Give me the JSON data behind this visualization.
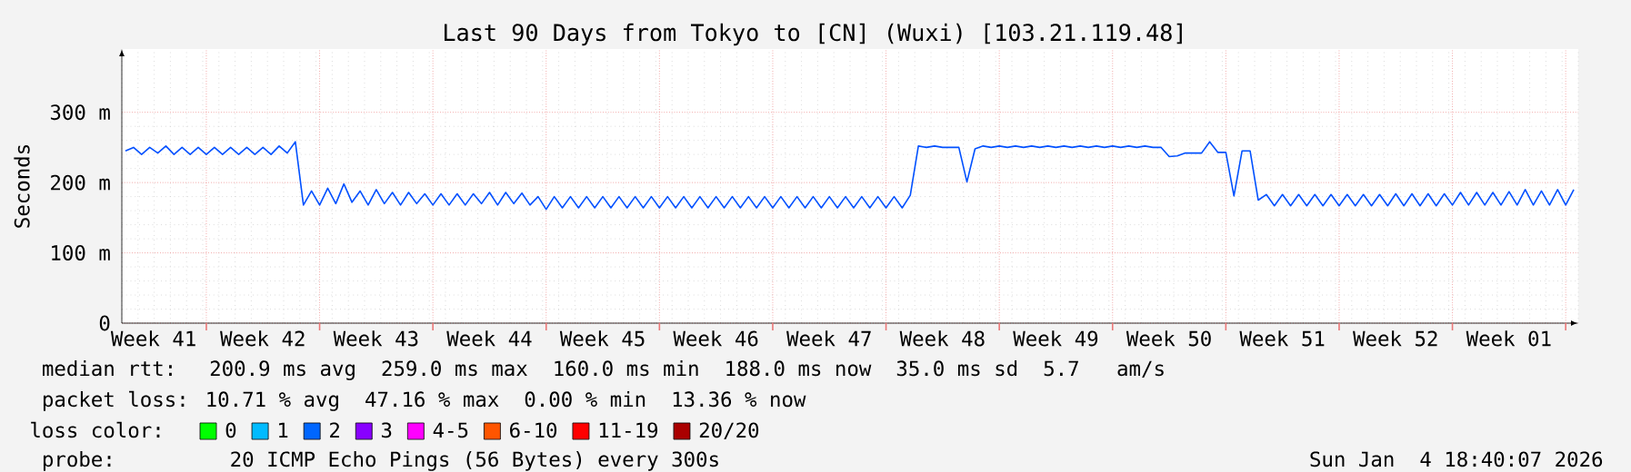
{
  "chart_data": {
    "type": "line",
    "title": "Last 90 Days from Tokyo to [CN] (Wuxi) [103.21.119.48]",
    "ylabel": "Seconds",
    "xlim": [
      "2025-10-06T18:40",
      "2026-01-04T18:40"
    ],
    "ylim": [
      0,
      390
    ],
    "xticks": [
      {
        "value": "2025-10-12T00:00",
        "label": null
      },
      {
        "value": "2025-10-19T00:00",
        "label": null
      },
      {
        "value": "2025-10-26T00:00",
        "label": null
      },
      {
        "value": "2025-11-02T00:00",
        "label": null
      },
      {
        "value": "2025-11-09T00:00",
        "label": null
      },
      {
        "value": "2025-11-16T00:00",
        "label": null
      },
      {
        "value": "2025-11-23T00:00",
        "label": null
      },
      {
        "value": "2025-11-30T00:00",
        "label": null
      },
      {
        "value": "2025-12-07T00:00",
        "label": null
      },
      {
        "value": "2025-12-14T00:00",
        "label": null
      },
      {
        "value": "2025-12-21T00:00",
        "label": null
      },
      {
        "value": "2025-12-28T00:00",
        "label": null
      },
      {
        "value": "2026-01-04T00:00",
        "label": null
      },
      {
        "value": "2025-10-08T18:00",
        "label": "Week 41"
      },
      {
        "value": "2025-10-15T12:00",
        "label": "Week 42"
      },
      {
        "value": "2025-10-22T12:00",
        "label": "Week 43"
      },
      {
        "value": "2025-10-29T12:00",
        "label": "Week 44"
      },
      {
        "value": "2025-11-05T12:00",
        "label": "Week 45"
      },
      {
        "value": "2025-11-12T12:00",
        "label": "Week 46"
      },
      {
        "value": "2025-11-19T12:00",
        "label": "Week 47"
      },
      {
        "value": "2025-11-26T12:00",
        "label": "Week 48"
      },
      {
        "value": "2025-12-03T12:00",
        "label": "Week 49"
      },
      {
        "value": "2025-12-10T12:00",
        "label": "Week 50"
      },
      {
        "value": "2025-12-17T12:00",
        "label": "Week 51"
      },
      {
        "value": "2025-12-24T12:00",
        "label": "Week 52"
      },
      {
        "value": "2025-12-31T12:00",
        "label": "Week 01"
      }
    ],
    "yticks": [
      0,
      {
        "value": 100,
        "label": "100 m"
      },
      {
        "value": 200,
        "label": "200 m"
      },
      {
        "value": 300,
        "label": "300 m"
      }
    ],
    "grid": true,
    "legend": "bottom",
    "legend_title": "loss color:",
    "series": [
      {
        "color": "#0050ff",
        "x": [
          "2025-10-07T00:00",
          "2025-10-07T12:00",
          "2025-10-08T00:00",
          "2025-10-08T12:00",
          "2025-10-09T00:00",
          "2025-10-09T12:00",
          "2025-10-10T00:00",
          "2025-10-10T12:00",
          "2025-10-11T00:00",
          "2025-10-11T12:00",
          "2025-10-12T00:00",
          "2025-10-12T12:00",
          "2025-10-13T00:00",
          "2025-10-13T12:00",
          "2025-10-14T00:00",
          "2025-10-14T12:00",
          "2025-10-15T00:00",
          "2025-10-15T12:00",
          "2025-10-16T00:00",
          "2025-10-16T12:00",
          "2025-10-17T00:00",
          "2025-10-17T12:00",
          "2025-10-18T00:00",
          "2025-10-18T12:00",
          "2025-10-19T00:00",
          "2025-10-19T12:00",
          "2025-10-20T00:00",
          "2025-10-20T12:00",
          "2025-10-21T00:00",
          "2025-10-21T12:00",
          "2025-10-22T00:00",
          "2025-10-22T12:00",
          "2025-10-23T00:00",
          "2025-10-23T12:00",
          "2025-10-24T00:00",
          "2025-10-24T12:00",
          "2025-10-25T00:00",
          "2025-10-25T12:00",
          "2025-10-26T00:00",
          "2025-10-26T12:00",
          "2025-10-27T00:00",
          "2025-10-27T12:00",
          "2025-10-28T00:00",
          "2025-10-28T12:00",
          "2025-10-29T00:00",
          "2025-10-29T12:00",
          "2025-10-30T00:00",
          "2025-10-30T12:00",
          "2025-10-31T00:00",
          "2025-10-31T12:00",
          "2025-11-01T00:00",
          "2025-11-01T12:00",
          "2025-11-02T00:00",
          "2025-11-02T12:00",
          "2025-11-03T00:00",
          "2025-11-03T12:00",
          "2025-11-04T00:00",
          "2025-11-04T12:00",
          "2025-11-05T00:00",
          "2025-11-05T12:00",
          "2025-11-06T00:00",
          "2025-11-06T12:00",
          "2025-11-07T00:00",
          "2025-11-07T12:00",
          "2025-11-08T00:00",
          "2025-11-08T12:00",
          "2025-11-09T00:00",
          "2025-11-09T12:00",
          "2025-11-10T00:00",
          "2025-11-10T12:00",
          "2025-11-11T00:00",
          "2025-11-11T12:00",
          "2025-11-12T00:00",
          "2025-11-12T12:00",
          "2025-11-13T00:00",
          "2025-11-13T12:00",
          "2025-11-14T00:00",
          "2025-11-14T12:00",
          "2025-11-15T00:00",
          "2025-11-15T12:00",
          "2025-11-16T00:00",
          "2025-11-16T12:00",
          "2025-11-17T00:00",
          "2025-11-17T12:00",
          "2025-11-18T00:00",
          "2025-11-18T12:00",
          "2025-11-19T00:00",
          "2025-11-19T12:00",
          "2025-11-20T00:00",
          "2025-11-20T12:00",
          "2025-11-21T00:00",
          "2025-11-21T12:00",
          "2025-11-22T00:00",
          "2025-11-22T12:00",
          "2025-11-23T00:00",
          "2025-11-23T12:00",
          "2025-11-24T00:00",
          "2025-11-24T12:00",
          "2025-11-25T00:00",
          "2025-11-25T12:00",
          "2025-11-26T00:00",
          "2025-11-26T12:00",
          "2025-11-27T00:00",
          "2025-11-27T12:00",
          "2025-11-28T00:00",
          "2025-11-28T12:00",
          "2025-11-29T00:00",
          "2025-11-29T12:00",
          "2025-11-30T00:00",
          "2025-11-30T12:00",
          "2025-12-01T00:00",
          "2025-12-01T12:00",
          "2025-12-02T00:00",
          "2025-12-02T12:00",
          "2025-12-03T00:00",
          "2025-12-03T12:00",
          "2025-12-04T00:00",
          "2025-12-04T12:00",
          "2025-12-05T00:00",
          "2025-12-05T12:00",
          "2025-12-06T00:00",
          "2025-12-06T12:00",
          "2025-12-07T00:00",
          "2025-12-07T12:00",
          "2025-12-08T00:00",
          "2025-12-08T12:00",
          "2025-12-09T00:00",
          "2025-12-09T12:00",
          "2025-12-10T00:00",
          "2025-12-10T12:00",
          "2025-12-11T00:00",
          "2025-12-11T12:00",
          "2025-12-12T00:00",
          "2025-12-12T12:00",
          "2025-12-13T00:00",
          "2025-12-13T12:00",
          "2025-12-14T00:00",
          "2025-12-14T12:00",
          "2025-12-15T00:00",
          "2025-12-15T12:00",
          "2025-12-16T00:00",
          "2025-12-16T12:00",
          "2025-12-17T00:00",
          "2025-12-17T12:00",
          "2025-12-18T00:00",
          "2025-12-18T12:00",
          "2025-12-19T00:00",
          "2025-12-19T12:00",
          "2025-12-20T00:00",
          "2025-12-20T12:00",
          "2025-12-21T00:00",
          "2025-12-21T12:00",
          "2025-12-22T00:00",
          "2025-12-22T12:00",
          "2025-12-23T00:00",
          "2025-12-23T12:00",
          "2025-12-24T00:00",
          "2025-12-24T12:00",
          "2025-12-25T00:00",
          "2025-12-25T12:00",
          "2025-12-26T00:00",
          "2025-12-26T12:00",
          "2025-12-27T00:00",
          "2025-12-27T12:00",
          "2025-12-28T00:00",
          "2025-12-28T12:00",
          "2025-12-29T00:00",
          "2025-12-29T12:00",
          "2025-12-30T00:00",
          "2025-12-30T12:00",
          "2025-12-31T00:00",
          "2025-12-31T12:00",
          "2026-01-01T00:00",
          "2026-01-01T12:00",
          "2026-01-02T00:00",
          "2026-01-02T12:00",
          "2026-01-03T00:00",
          "2026-01-03T12:00",
          "2026-01-04T00:00",
          "2026-01-04T12:00"
        ],
        "values": [
          245,
          250,
          240,
          250,
          242,
          252,
          240,
          250,
          240,
          250,
          240,
          250,
          240,
          250,
          240,
          250,
          240,
          250,
          240,
          252,
          242,
          258,
          168,
          188,
          168,
          192,
          170,
          198,
          172,
          188,
          168,
          190,
          170,
          186,
          168,
          186,
          170,
          184,
          168,
          184,
          168,
          184,
          168,
          184,
          170,
          186,
          168,
          186,
          170,
          185,
          168,
          180,
          162,
          180,
          164,
          180,
          164,
          180,
          164,
          180,
          164,
          180,
          164,
          180,
          164,
          180,
          164,
          180,
          164,
          180,
          164,
          180,
          164,
          180,
          164,
          180,
          164,
          180,
          164,
          180,
          164,
          180,
          164,
          180,
          164,
          180,
          164,
          180,
          164,
          180,
          164,
          180,
          164,
          180,
          164,
          180,
          164,
          182,
          252,
          250,
          252,
          250,
          250,
          250,
          201,
          248,
          252,
          250,
          252,
          250,
          252,
          250,
          252,
          250,
          252,
          250,
          252,
          250,
          252,
          250,
          252,
          250,
          252,
          250,
          252,
          250,
          252,
          250,
          250,
          237,
          238,
          242,
          242,
          242,
          258,
          243,
          243,
          181,
          245,
          245,
          175,
          183,
          167,
          183,
          167,
          183,
          167,
          183,
          167,
          183,
          167,
          183,
          167,
          183,
          167,
          183,
          167,
          184,
          167,
          184,
          167,
          184,
          167,
          184,
          168,
          186,
          168,
          186,
          168,
          186,
          168,
          187,
          168,
          190,
          168,
          188,
          168,
          190,
          168,
          190
        ]
      },
      {
        "name": "0",
        "color": "#00ff00"
      },
      {
        "name": "1",
        "color": "#00bbff"
      },
      {
        "name": "2",
        "color": "#0066ff"
      },
      {
        "name": "3",
        "color": "#8800ff"
      },
      {
        "name": "4-5",
        "color": "#ff00ff"
      },
      {
        "name": "6-10",
        "color": "#ff5500"
      },
      {
        "name": "11-19",
        "color": "#ff0000"
      },
      {
        "name": "20/20",
        "color": "#aa0000"
      }
    ],
    "annotations": [
      "median rtt:  200.9 ms avg  259.0 ms max  160.0 ms min  188.0 ms now  35.0 ms sd  5.7   am/s",
      "packet loss: 10.71 % avg  47.16 % max  0.00 % min  13.36 % now",
      "probe:       20 ICMP Echo Pings (56 Bytes) every 300s",
      "Sun Jan  4 18:40:07 2026"
    ]
  }
}
